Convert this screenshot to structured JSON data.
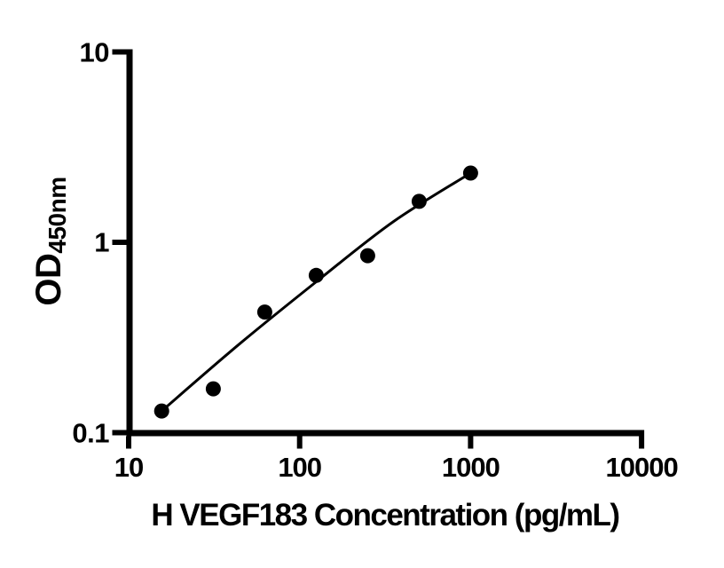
{
  "chart_data": {
    "type": "scatter",
    "title": "",
    "x_title": "H VEGF183 Concentration (pg/mL)",
    "y_title_main": "OD",
    "y_title_sub": "450nm",
    "x_scale": "log",
    "y_scale": "log",
    "x_range": [
      10,
      10000
    ],
    "y_range": [
      0.1,
      10
    ],
    "x_ticks": [
      10,
      100,
      1000,
      10000
    ],
    "y_ticks": [
      0.1,
      1,
      10
    ],
    "grid": false,
    "legend": false,
    "series": [
      {
        "name": "standard points",
        "type": "scatter",
        "marker": "filled-circle",
        "x": [
          15.6,
          31.25,
          62.5,
          125,
          250,
          500,
          1000
        ],
        "y": [
          0.13,
          0.17,
          0.43,
          0.67,
          0.85,
          1.64,
          2.31
        ]
      },
      {
        "name": "fitted curve",
        "type": "line",
        "x": [
          15.6,
          44,
          125,
          352,
          1000
        ],
        "y": [
          0.13,
          0.29,
          0.62,
          1.28,
          2.31
        ]
      }
    ],
    "colors": {
      "marker": "#000000",
      "line": "#000000",
      "axis": "#000000",
      "text": "#000000",
      "background": "#ffffff"
    }
  }
}
